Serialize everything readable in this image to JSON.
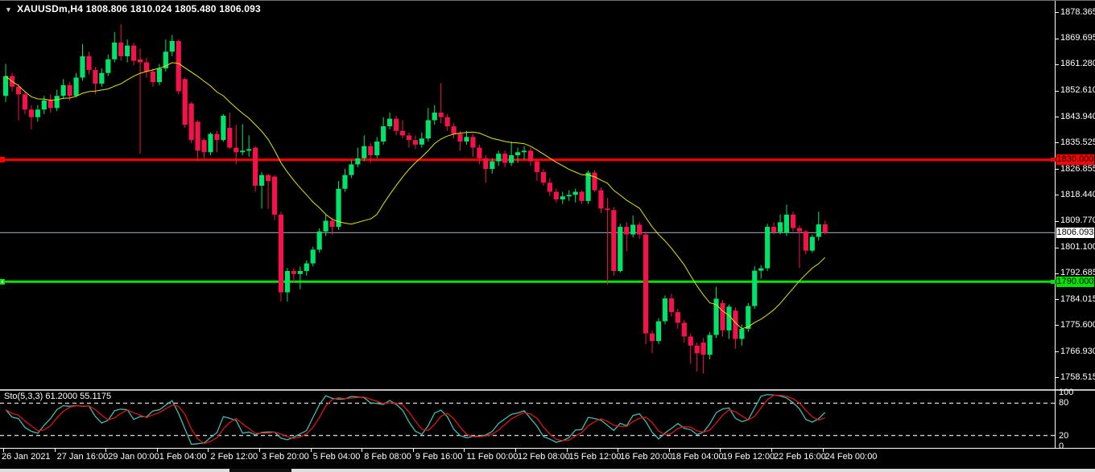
{
  "header": {
    "dropdown_icon": "▼",
    "title": "XAUUSDm,H4  1808.806 1810.024 1805.480 1806.093"
  },
  "chart_data": {
    "type": "candlestick",
    "symbol": "XAUUSDm",
    "timeframe": "H4",
    "ohlc_header": {
      "open": "1808.806",
      "high": "1810.024",
      "low": "1805.480",
      "close": "1806.093"
    },
    "bull_color": "#00e36a",
    "bear_color": "#f5124a",
    "x_labels": [
      "26 Jan 2021",
      "27 Jan 16:00",
      "29 Jan 00:00",
      "1 Feb 04:00",
      "2 Feb 12:00",
      "3 Feb 20:00",
      "5 Feb 04:00",
      "8 Feb 08:00",
      "9 Feb 16:00",
      "11 Feb 00:00",
      "12 Feb 08:00",
      "15 Feb 12:00",
      "16 Feb 20:00",
      "18 Feb 04:00",
      "19 Feb 12:00",
      "22 Feb 16:00",
      "24 Feb 00:00"
    ],
    "y_axis_labels": [
      "1878.365",
      "1869.695",
      "1861.280",
      "1852.610",
      "1843.940",
      "1835.525",
      "1826.855",
      "1818.440",
      "1809.770",
      "1801.100",
      "1792.685",
      "1784.015",
      "1775.600",
      "1766.930",
      "1758.515"
    ],
    "ylim": [
      1754.7,
      1882.2
    ],
    "ma": {
      "name": "Moving Average",
      "period": 16,
      "color": "#e6e600"
    },
    "hlines": [
      {
        "price": 1830.0,
        "label": "1830.000",
        "color": "#ff0000",
        "text_color": "#000000"
      },
      {
        "price": 1790.0,
        "label": "1790.000",
        "color": "#00e400",
        "text_color": "#000000"
      }
    ],
    "current_price": {
      "value": 1806.093,
      "label": "1806.093",
      "line_color": "#aab4c0",
      "tag_bg": "#ffffff"
    },
    "indicator": {
      "name": "Sto(5,3,3)",
      "label": "Sto(5,3,3) 61.2000 55.1175",
      "k_value": "61.2000",
      "d_value": "55.1175",
      "k_color": "#3fbdb1",
      "d_color": "#dd1414",
      "levels": [
        "100",
        "80",
        "20",
        "0"
      ],
      "dashed_levels": [
        80,
        20
      ],
      "range": [
        0,
        100
      ],
      "level_line_color": "#cfcfcf"
    },
    "candles": [
      [
        1851.0,
        1861.5,
        1849.0,
        1857.5
      ],
      [
        1857.5,
        1858.5,
        1852.5,
        1854.0
      ],
      [
        1854.0,
        1855.0,
        1843.0,
        1851.5
      ],
      [
        1851.5,
        1852.5,
        1845.0,
        1846.5
      ],
      [
        1846.5,
        1848.0,
        1840.0,
        1844.0
      ],
      [
        1844.0,
        1848.0,
        1842.5,
        1846.5
      ],
      [
        1846.5,
        1851.0,
        1845.0,
        1849.5
      ],
      [
        1849.5,
        1851.5,
        1845.5,
        1847.0
      ],
      [
        1847.0,
        1853.0,
        1846.0,
        1851.0
      ],
      [
        1851.0,
        1856.5,
        1850.0,
        1854.5
      ],
      [
        1854.5,
        1855.5,
        1849.5,
        1851.0
      ],
      [
        1851.0,
        1858.5,
        1850.5,
        1857.0
      ],
      [
        1857.0,
        1868.0,
        1856.0,
        1864.0
      ],
      [
        1864.0,
        1865.5,
        1858.0,
        1859.5
      ],
      [
        1859.5,
        1860.5,
        1851.5,
        1855.0
      ],
      [
        1855.0,
        1860.0,
        1854.0,
        1858.5
      ],
      [
        1858.5,
        1864.5,
        1857.5,
        1863.0
      ],
      [
        1863.0,
        1872.0,
        1862.0,
        1868.5
      ],
      [
        1868.5,
        1874.5,
        1862.5,
        1864.0
      ],
      [
        1864.0,
        1869.5,
        1862.0,
        1867.5
      ],
      [
        1867.5,
        1868.5,
        1861.0,
        1862.5
      ],
      [
        1863.0,
        1866.5,
        1832.0,
        1862.0
      ],
      [
        1862.0,
        1863.5,
        1857.0,
        1859.0
      ],
      [
        1859.0,
        1860.0,
        1854.0,
        1855.5
      ],
      [
        1855.5,
        1861.5,
        1854.5,
        1860.0
      ],
      [
        1860.0,
        1869.5,
        1859.0,
        1865.5
      ],
      [
        1865.5,
        1871.0,
        1864.0,
        1869.0
      ],
      [
        1869.0,
        1869.5,
        1851.5,
        1852.5
      ],
      [
        1856.5,
        1857.0,
        1840.5,
        1841.5
      ],
      [
        1848.5,
        1849.0,
        1835.5,
        1836.5
      ],
      [
        1842.5,
        1843.0,
        1829.5,
        1833.0
      ],
      [
        1836.5,
        1837.0,
        1830.5,
        1832.5
      ],
      [
        1832.5,
        1839.0,
        1831.5,
        1838.5
      ],
      [
        1838.5,
        1839.5,
        1832.5,
        1836.5
      ],
      [
        1836.5,
        1845.0,
        1836.0,
        1844.5
      ],
      [
        1840.5,
        1845.5,
        1833.5,
        1834.0
      ],
      [
        1834.0,
        1841.5,
        1828.5,
        1832.5
      ],
      [
        1832.5,
        1841.7,
        1831.5,
        1833.0
      ],
      [
        1833.0,
        1838.0,
        1831.0,
        1833.5
      ],
      [
        1834.0,
        1834.5,
        1819.5,
        1821.5
      ],
      [
        1821.5,
        1826.0,
        1814.0,
        1825.0
      ],
      [
        1825.0,
        1825.5,
        1813.9,
        1823.0
      ],
      [
        1824.5,
        1825.0,
        1810.2,
        1812.0
      ],
      [
        1812.0,
        1813.0,
        1783.5,
        1786.5
      ],
      [
        1786.5,
        1794.5,
        1783.5,
        1793.5
      ],
      [
        1793.5,
        1794.5,
        1789.5,
        1792.5
      ],
      [
        1792.5,
        1795.0,
        1787.5,
        1793.5
      ],
      [
        1793.5,
        1797.0,
        1792.0,
        1796.0
      ],
      [
        1796.0,
        1801.5,
        1795.0,
        1800.5
      ],
      [
        1800.5,
        1807.5,
        1799.5,
        1806.5
      ],
      [
        1806.5,
        1812.0,
        1805.0,
        1810.0
      ],
      [
        1810.0,
        1811.0,
        1805.5,
        1808.0
      ],
      [
        1808.0,
        1823.0,
        1807.0,
        1820.5
      ],
      [
        1820.5,
        1827.0,
        1819.5,
        1825.0
      ],
      [
        1825.0,
        1830.0,
        1824.0,
        1828.5
      ],
      [
        1828.5,
        1834.0,
        1827.5,
        1830.5
      ],
      [
        1830.5,
        1838.0,
        1829.5,
        1834.5
      ],
      [
        1834.5,
        1835.5,
        1829.0,
        1831.5
      ],
      [
        1831.5,
        1837.5,
        1830.5,
        1836.0
      ],
      [
        1836.0,
        1844.0,
        1835.0,
        1841.0
      ],
      [
        1841.0,
        1845.5,
        1840.0,
        1843.5
      ],
      [
        1843.5,
        1844.5,
        1838.0,
        1839.5
      ],
      [
        1839.5,
        1843.0,
        1837.0,
        1838.0
      ],
      [
        1838.0,
        1839.0,
        1834.0,
        1836.5
      ],
      [
        1836.5,
        1838.0,
        1833.5,
        1835.0
      ],
      [
        1835.0,
        1839.0,
        1834.0,
        1837.0
      ],
      [
        1837.0,
        1847.0,
        1836.0,
        1843.0
      ],
      [
        1843.0,
        1848.0,
        1841.5,
        1845.5
      ],
      [
        1845.5,
        1855.2,
        1842.0,
        1844.0
      ],
      [
        1844.0,
        1845.0,
        1839.5,
        1841.0
      ],
      [
        1841.0,
        1842.0,
        1837.0,
        1838.5
      ],
      [
        1838.5,
        1839.5,
        1833.0,
        1836.0
      ],
      [
        1836.0,
        1839.5,
        1835.0,
        1837.5
      ],
      [
        1837.5,
        1838.5,
        1831.0,
        1834.0
      ],
      [
        1834.0,
        1835.0,
        1828.5,
        1830.5
      ],
      [
        1830.5,
        1831.5,
        1822.5,
        1827.0
      ],
      [
        1827.0,
        1830.5,
        1825.5,
        1829.5
      ],
      [
        1829.5,
        1833.0,
        1828.0,
        1832.0
      ],
      [
        1832.0,
        1833.0,
        1827.5,
        1829.0
      ],
      [
        1829.0,
        1836.0,
        1828.0,
        1831.5
      ],
      [
        1831.5,
        1834.0,
        1829.0,
        1832.5
      ],
      [
        1832.5,
        1834.5,
        1830.0,
        1833.0
      ],
      [
        1833.0,
        1834.0,
        1828.0,
        1829.5
      ],
      [
        1829.5,
        1830.5,
        1823.0,
        1826.0
      ],
      [
        1826.0,
        1827.0,
        1821.5,
        1822.5
      ],
      [
        1822.5,
        1824.0,
        1818.0,
        1819.5
      ],
      [
        1819.5,
        1820.5,
        1816.0,
        1817.0
      ],
      [
        1817.0,
        1819.5,
        1815.5,
        1818.0
      ],
      [
        1818.0,
        1820.0,
        1816.5,
        1818.5
      ],
      [
        1818.5,
        1820.5,
        1816.0,
        1819.5
      ],
      [
        1819.5,
        1820.0,
        1815.5,
        1816.5
      ],
      [
        1816.5,
        1826.5,
        1815.5,
        1825.8
      ],
      [
        1825.8,
        1826.5,
        1819.5,
        1820.0
      ],
      [
        1820.0,
        1821.0,
        1812.5,
        1814.0
      ],
      [
        1814.0,
        1817.5,
        1789.0,
        1813.5
      ],
      [
        1813.5,
        1814.5,
        1792.0,
        1793.5
      ],
      [
        1793.5,
        1809.0,
        1793.0,
        1808.0
      ],
      [
        1808.0,
        1809.5,
        1800.0,
        1805.5
      ],
      [
        1805.5,
        1811.7,
        1804.5,
        1808.7
      ],
      [
        1808.7,
        1809.5,
        1804.0,
        1805.5
      ],
      [
        1805.5,
        1806.5,
        1769.5,
        1773.0
      ],
      [
        1773.0,
        1774.0,
        1766.5,
        1770.5
      ],
      [
        1770.5,
        1778.0,
        1769.5,
        1777.0
      ],
      [
        1777.0,
        1785.5,
        1776.0,
        1784.5
      ],
      [
        1784.5,
        1786.0,
        1778.5,
        1780.0
      ],
      [
        1780.0,
        1781.0,
        1774.5,
        1776.5
      ],
      [
        1776.5,
        1777.5,
        1770.0,
        1772.0
      ],
      [
        1772.0,
        1773.0,
        1763.0,
        1769.0
      ],
      [
        1769.0,
        1770.0,
        1760.5,
        1766.5
      ],
      [
        1770.0,
        1771.5,
        1759.8,
        1766.0
      ],
      [
        1766.0,
        1773.5,
        1764.5,
        1772.5
      ],
      [
        1772.5,
        1788.3,
        1771.5,
        1784.4
      ],
      [
        1783.0,
        1784.0,
        1772.0,
        1774.0
      ],
      [
        1774.0,
        1782.5,
        1771.2,
        1781.8
      ],
      [
        1780.5,
        1781.5,
        1768.0,
        1771.2
      ],
      [
        1771.2,
        1776.0,
        1769.0,
        1774.5
      ],
      [
        1774.5,
        1783.0,
        1773.5,
        1782.0
      ],
      [
        1782.0,
        1795.0,
        1781.0,
        1793.6
      ],
      [
        1793.6,
        1795.5,
        1791.0,
        1794.4
      ],
      [
        1794.4,
        1809.0,
        1793.5,
        1808.0
      ],
      [
        1808.0,
        1809.5,
        1805.5,
        1806.3
      ],
      [
        1806.3,
        1812.1,
        1805.5,
        1809.5
      ],
      [
        1806.0,
        1815.3,
        1805.0,
        1812.0
      ],
      [
        1812.0,
        1813.0,
        1806.5,
        1807.6
      ],
      [
        1807.6,
        1808.5,
        1794.5,
        1806.5
      ],
      [
        1806.5,
        1807.0,
        1799.0,
        1800.2
      ],
      [
        1800.2,
        1805.5,
        1799.5,
        1804.7
      ],
      [
        1804.7,
        1813.0,
        1803.5,
        1808.8
      ],
      [
        1808.806,
        1810.024,
        1805.48,
        1806.093
      ]
    ]
  }
}
